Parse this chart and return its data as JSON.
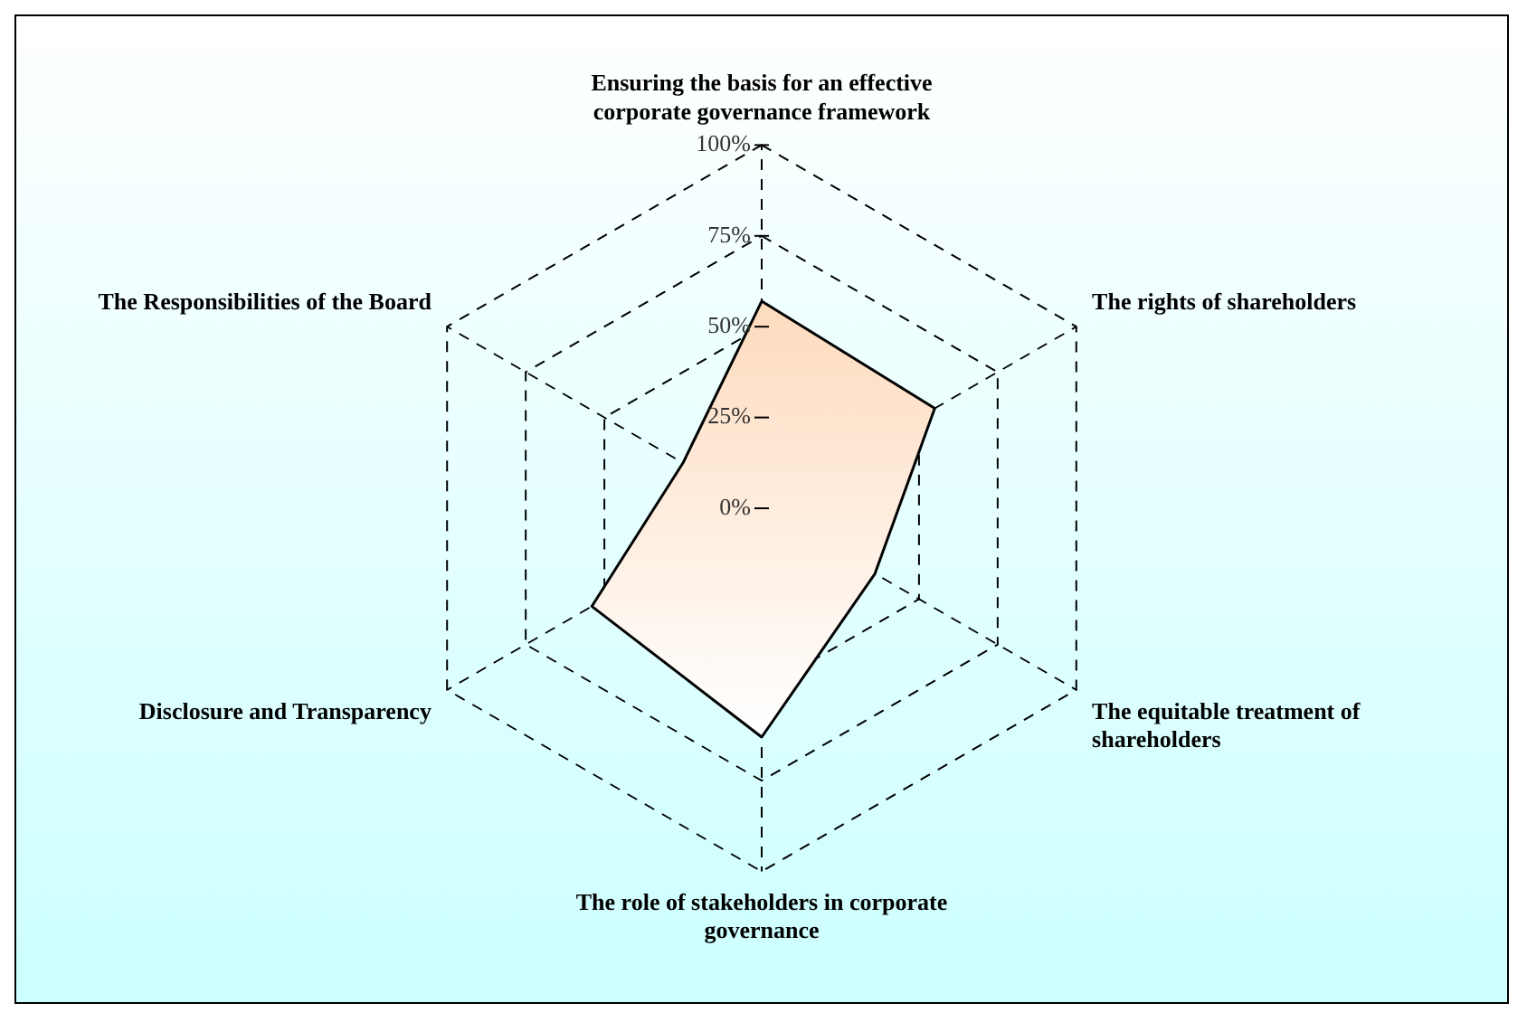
{
  "chart_data": {
    "type": "radar",
    "categories": [
      "Ensuring the basis for an effective corporate governance framework",
      "The rights of shareholders",
      "The equitable treatment of shareholders",
      "The role of stakeholders in corporate governance",
      "Disclosure and Transparency",
      "The Responsibilities of the Board"
    ],
    "series": [
      {
        "color": "#fdc79a",
        "values": [
          57,
          55,
          36,
          63,
          54,
          25
        ]
      }
    ],
    "ylim": [
      0,
      100
    ],
    "yticks": [
      {
        "value": 0,
        "label": "0%"
      },
      {
        "value": 25,
        "label": "25%"
      },
      {
        "value": 50,
        "label": "50%"
      },
      {
        "value": 75,
        "label": "75%"
      },
      {
        "value": 100,
        "label": "100%"
      }
    ],
    "grid": true,
    "legend": false,
    "marker": "none",
    "line_style": "solid"
  }
}
